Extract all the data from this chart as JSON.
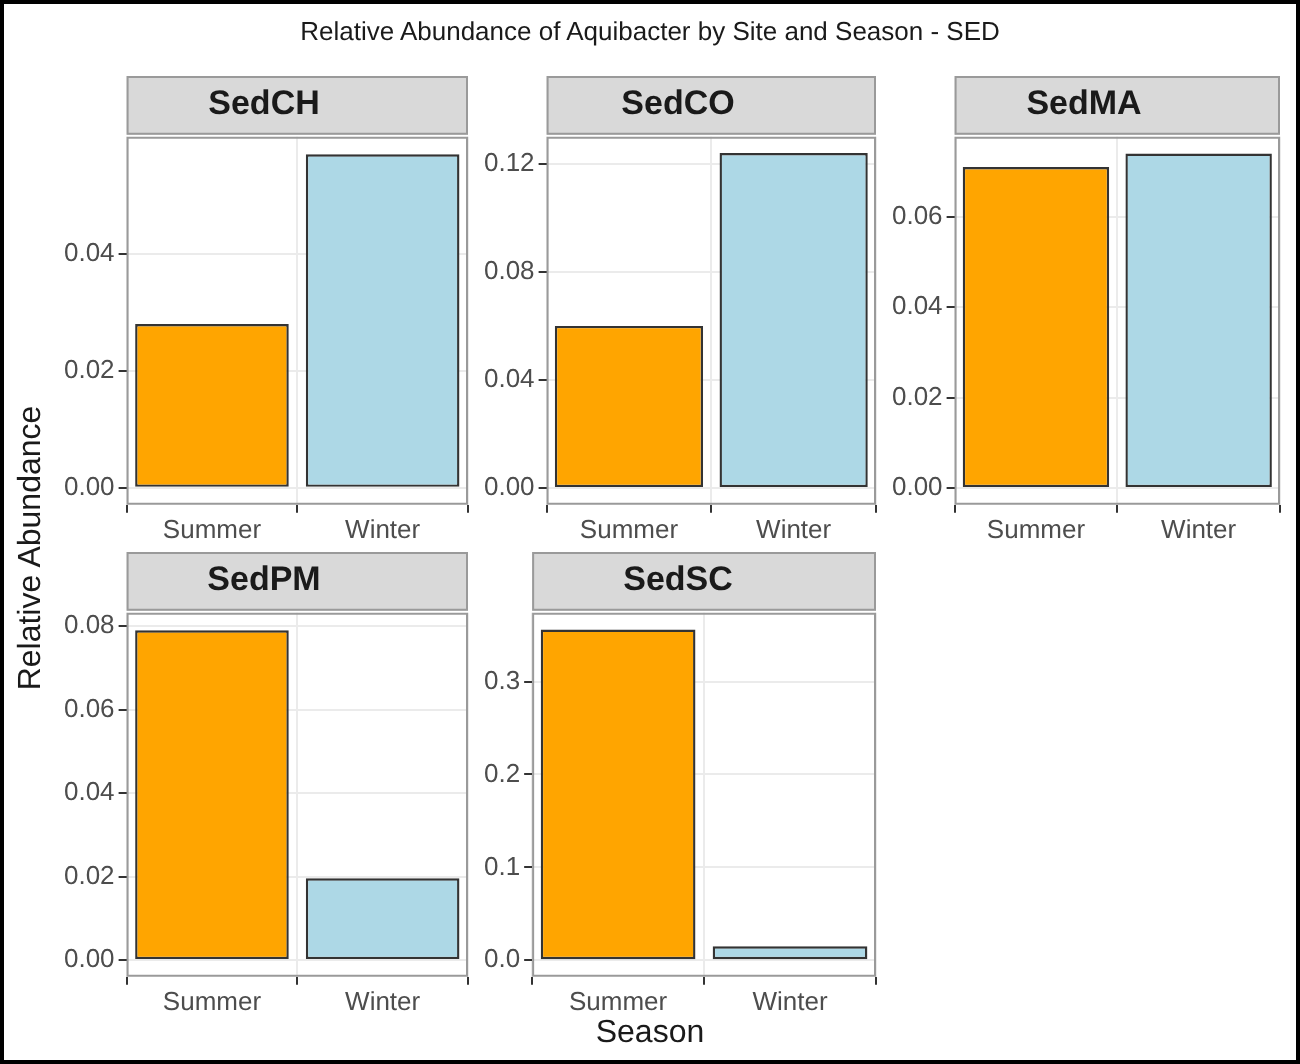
{
  "chart_data": [
    {
      "type": "bar",
      "title": "SedCH",
      "annotations": [
        "Relative Abundance of Aquibacter by Site and Season - SED"
      ],
      "ylabel": "Relative Abundance",
      "categories": [
        "Summer",
        "Winter"
      ],
      "values": [
        0.028,
        0.057
      ],
      "colors": [
        "#ffa500",
        "#add8e6"
      ],
      "ylim": [
        -0.0029,
        0.06
      ],
      "yticks": [
        {
          "value": 0,
          "label": "0.00"
        },
        {
          "value": 0.02,
          "label": "0.02"
        },
        {
          "value": 0.04,
          "label": "0.04"
        }
      ],
      "grid": true
    },
    {
      "type": "bar",
      "title": "SedCO",
      "categories": [
        "Summer",
        "Winter"
      ],
      "values": [
        0.06,
        0.124
      ],
      "colors": [
        "#ffa500",
        "#add8e6"
      ],
      "ylim": [
        -0.0062,
        0.13
      ],
      "yticks": [
        {
          "value": 0,
          "label": "0.00"
        },
        {
          "value": 0.04,
          "label": "0.04"
        },
        {
          "value": 0.08,
          "label": "0.08"
        },
        {
          "value": 0.12,
          "label": "0.12"
        }
      ],
      "grid": true
    },
    {
      "type": "bar",
      "title": "SedMA",
      "categories": [
        "Summer",
        "Winter"
      ],
      "values": [
        0.071,
        0.074
      ],
      "colors": [
        "#ffa500",
        "#add8e6"
      ],
      "ylim": [
        -0.0037,
        0.0777
      ],
      "yticks": [
        {
          "value": 0,
          "label": "0.00"
        },
        {
          "value": 0.02,
          "label": "0.02"
        },
        {
          "value": 0.04,
          "label": "0.04"
        },
        {
          "value": 0.06,
          "label": "0.06"
        }
      ],
      "grid": true
    },
    {
      "type": "bar",
      "title": "SedPM",
      "categories": [
        "Summer",
        "Winter"
      ],
      "values": [
        0.079,
        0.0196
      ],
      "colors": [
        "#ffa500",
        "#add8e6"
      ],
      "ylim": [
        -0.004,
        0.0832
      ],
      "yticks": [
        {
          "value": 0,
          "label": "0.00"
        },
        {
          "value": 0.02,
          "label": "0.02"
        },
        {
          "value": 0.04,
          "label": "0.04"
        },
        {
          "value": 0.06,
          "label": "0.06"
        },
        {
          "value": 0.08,
          "label": "0.08"
        }
      ],
      "grid": true
    },
    {
      "type": "bar",
      "title": "SedSC",
      "xlabel": "Season",
      "categories": [
        "Summer",
        "Winter"
      ],
      "values": [
        0.356,
        0.015
      ],
      "colors": [
        "#ffa500",
        "#add8e6"
      ],
      "ylim": [
        -0.0178,
        0.374
      ],
      "yticks": [
        {
          "value": 0,
          "label": "0.0"
        },
        {
          "value": 0.1,
          "label": "0.1"
        },
        {
          "value": 0.2,
          "label": "0.2"
        },
        {
          "value": 0.3,
          "label": "0.3"
        }
      ],
      "grid": true
    }
  ]
}
